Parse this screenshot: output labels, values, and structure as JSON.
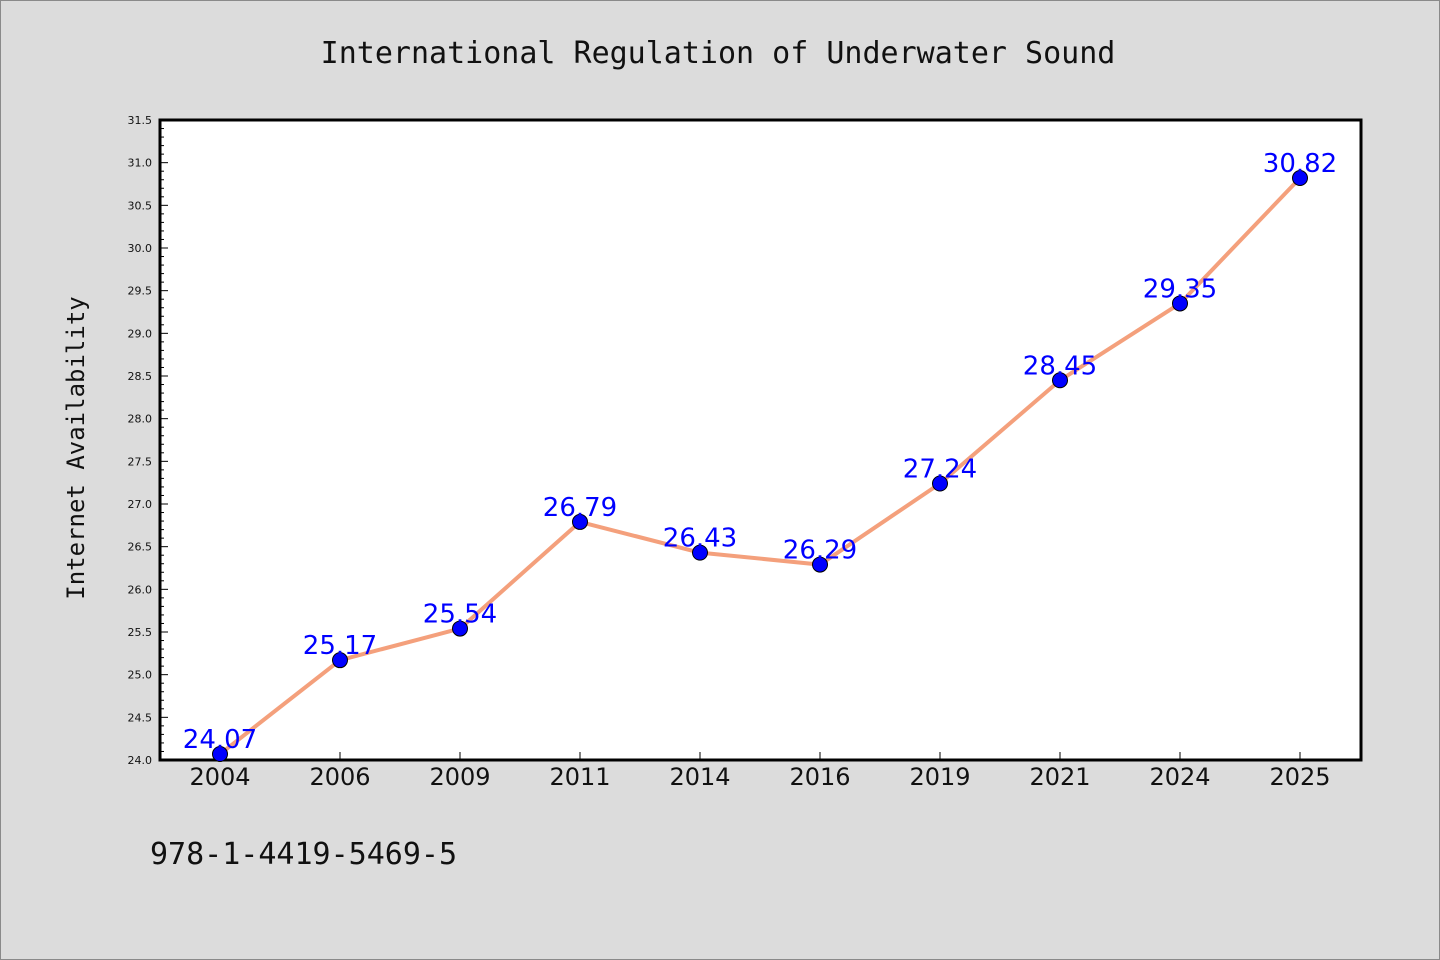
{
  "chart_data": {
    "type": "line",
    "title": "International Regulation of Underwater Sound",
    "ylabel": "Internet Availability",
    "xlabel": "",
    "categories": [
      "2004",
      "2006",
      "2009",
      "2011",
      "2014",
      "2016",
      "2019",
      "2021",
      "2024",
      "2025"
    ],
    "series": [
      {
        "values": [
          24.07,
          25.17,
          25.54,
          26.79,
          26.43,
          26.29,
          27.24,
          28.45,
          29.35,
          30.82
        ],
        "labels": [
          "24.07",
          "25.17",
          "25.54",
          "26.79",
          "26.43",
          "26.29",
          "27.24",
          "28.45",
          "29.35",
          "30.82"
        ]
      }
    ],
    "ylim": [
      24.0,
      31.5
    ],
    "yticks": [
      "24.0",
      "24.5",
      "25.0",
      "25.5",
      "26.0",
      "26.5",
      "27.0",
      "27.5",
      "28.0",
      "28.5",
      "29.0",
      "29.5",
      "30.0",
      "30.5",
      "31.0",
      "31.5"
    ],
    "grid": false,
    "legend": "none",
    "colors": {
      "line": "#f4a07c",
      "marker": "#0000ff",
      "data_label": "#0000ff",
      "background": "#dcdcdc",
      "plot_background": "#ffffff"
    }
  },
  "footer": {
    "isbn": "978-1-4419-5469-5"
  }
}
